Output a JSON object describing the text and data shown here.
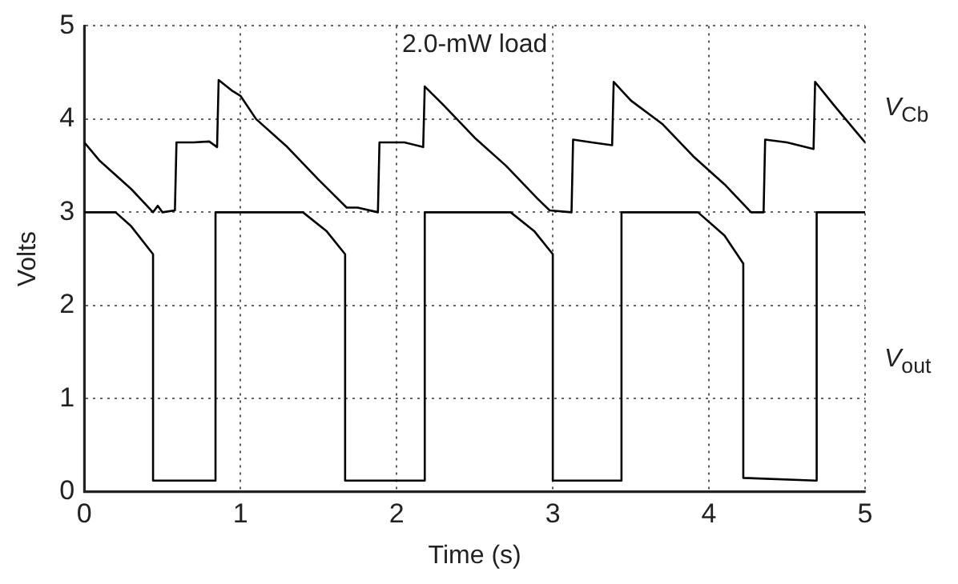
{
  "chart_data": {
    "type": "line",
    "xlabel": "Time (s)",
    "ylabel": "Volts",
    "annotations": [
      "2.0-mW load"
    ],
    "xlim": [
      0,
      5
    ],
    "xticks": [
      0,
      1,
      2,
      3,
      4,
      5
    ],
    "ylim": [
      0,
      5
    ],
    "yticks": [
      0,
      1,
      2,
      3,
      4,
      5
    ],
    "grid": true,
    "legend": false,
    "marker": "none",
    "line_style": "solid",
    "series": [
      {
        "name": "V$_{Cb}$",
        "color": "#000000",
        "x": [
          0,
          0.1,
          0.2,
          0.3,
          0.44,
          0.47,
          0.5,
          0.58,
          0.59,
          0.7,
          0.8,
          0.85,
          0.86,
          0.95,
          1.0,
          1.1,
          1.3,
          1.5,
          1.68,
          1.75,
          1.88,
          1.89,
          2.05,
          2.17,
          2.18,
          2.3,
          2.5,
          2.7,
          2.9,
          2.98,
          3.12,
          3.13,
          3.25,
          3.38,
          3.39,
          3.5,
          3.7,
          3.9,
          4.1,
          4.27,
          4.35,
          4.36,
          4.5,
          4.67,
          4.68,
          4.8,
          4.95,
          5
        ],
        "values": [
          3.75,
          3.55,
          3.4,
          3.25,
          3.0,
          3.07,
          3.0,
          3.02,
          3.75,
          3.75,
          3.76,
          3.7,
          4.42,
          4.3,
          4.25,
          4.0,
          3.7,
          3.35,
          3.05,
          3.05,
          3.0,
          3.75,
          3.75,
          3.7,
          4.35,
          4.15,
          3.8,
          3.5,
          3.15,
          3.02,
          3.0,
          3.78,
          3.75,
          3.72,
          4.4,
          4.2,
          3.95,
          3.6,
          3.3,
          3.0,
          3.0,
          3.78,
          3.75,
          3.68,
          4.4,
          4.15,
          3.85,
          3.75
        ]
      },
      {
        "name": "V$_{out}$",
        "color": "#000000",
        "x": [
          0,
          0.2,
          0.3,
          0.44,
          0.44,
          0.84,
          0.84,
          1.4,
          1.55,
          1.67,
          1.67,
          2.18,
          2.18,
          2.73,
          2.88,
          3.0,
          3.0,
          3.44,
          3.44,
          3.93,
          4.1,
          4.22,
          4.22,
          4.69,
          4.69,
          5
        ],
        "values": [
          3.0,
          3.0,
          2.85,
          2.55,
          0.12,
          0.12,
          3.0,
          3.0,
          2.8,
          2.55,
          0.12,
          0.12,
          3.0,
          3.0,
          2.8,
          2.55,
          0.12,
          0.12,
          3.0,
          3.0,
          2.75,
          2.45,
          0.15,
          0.12,
          3.0,
          3.0
        ]
      }
    ]
  }
}
